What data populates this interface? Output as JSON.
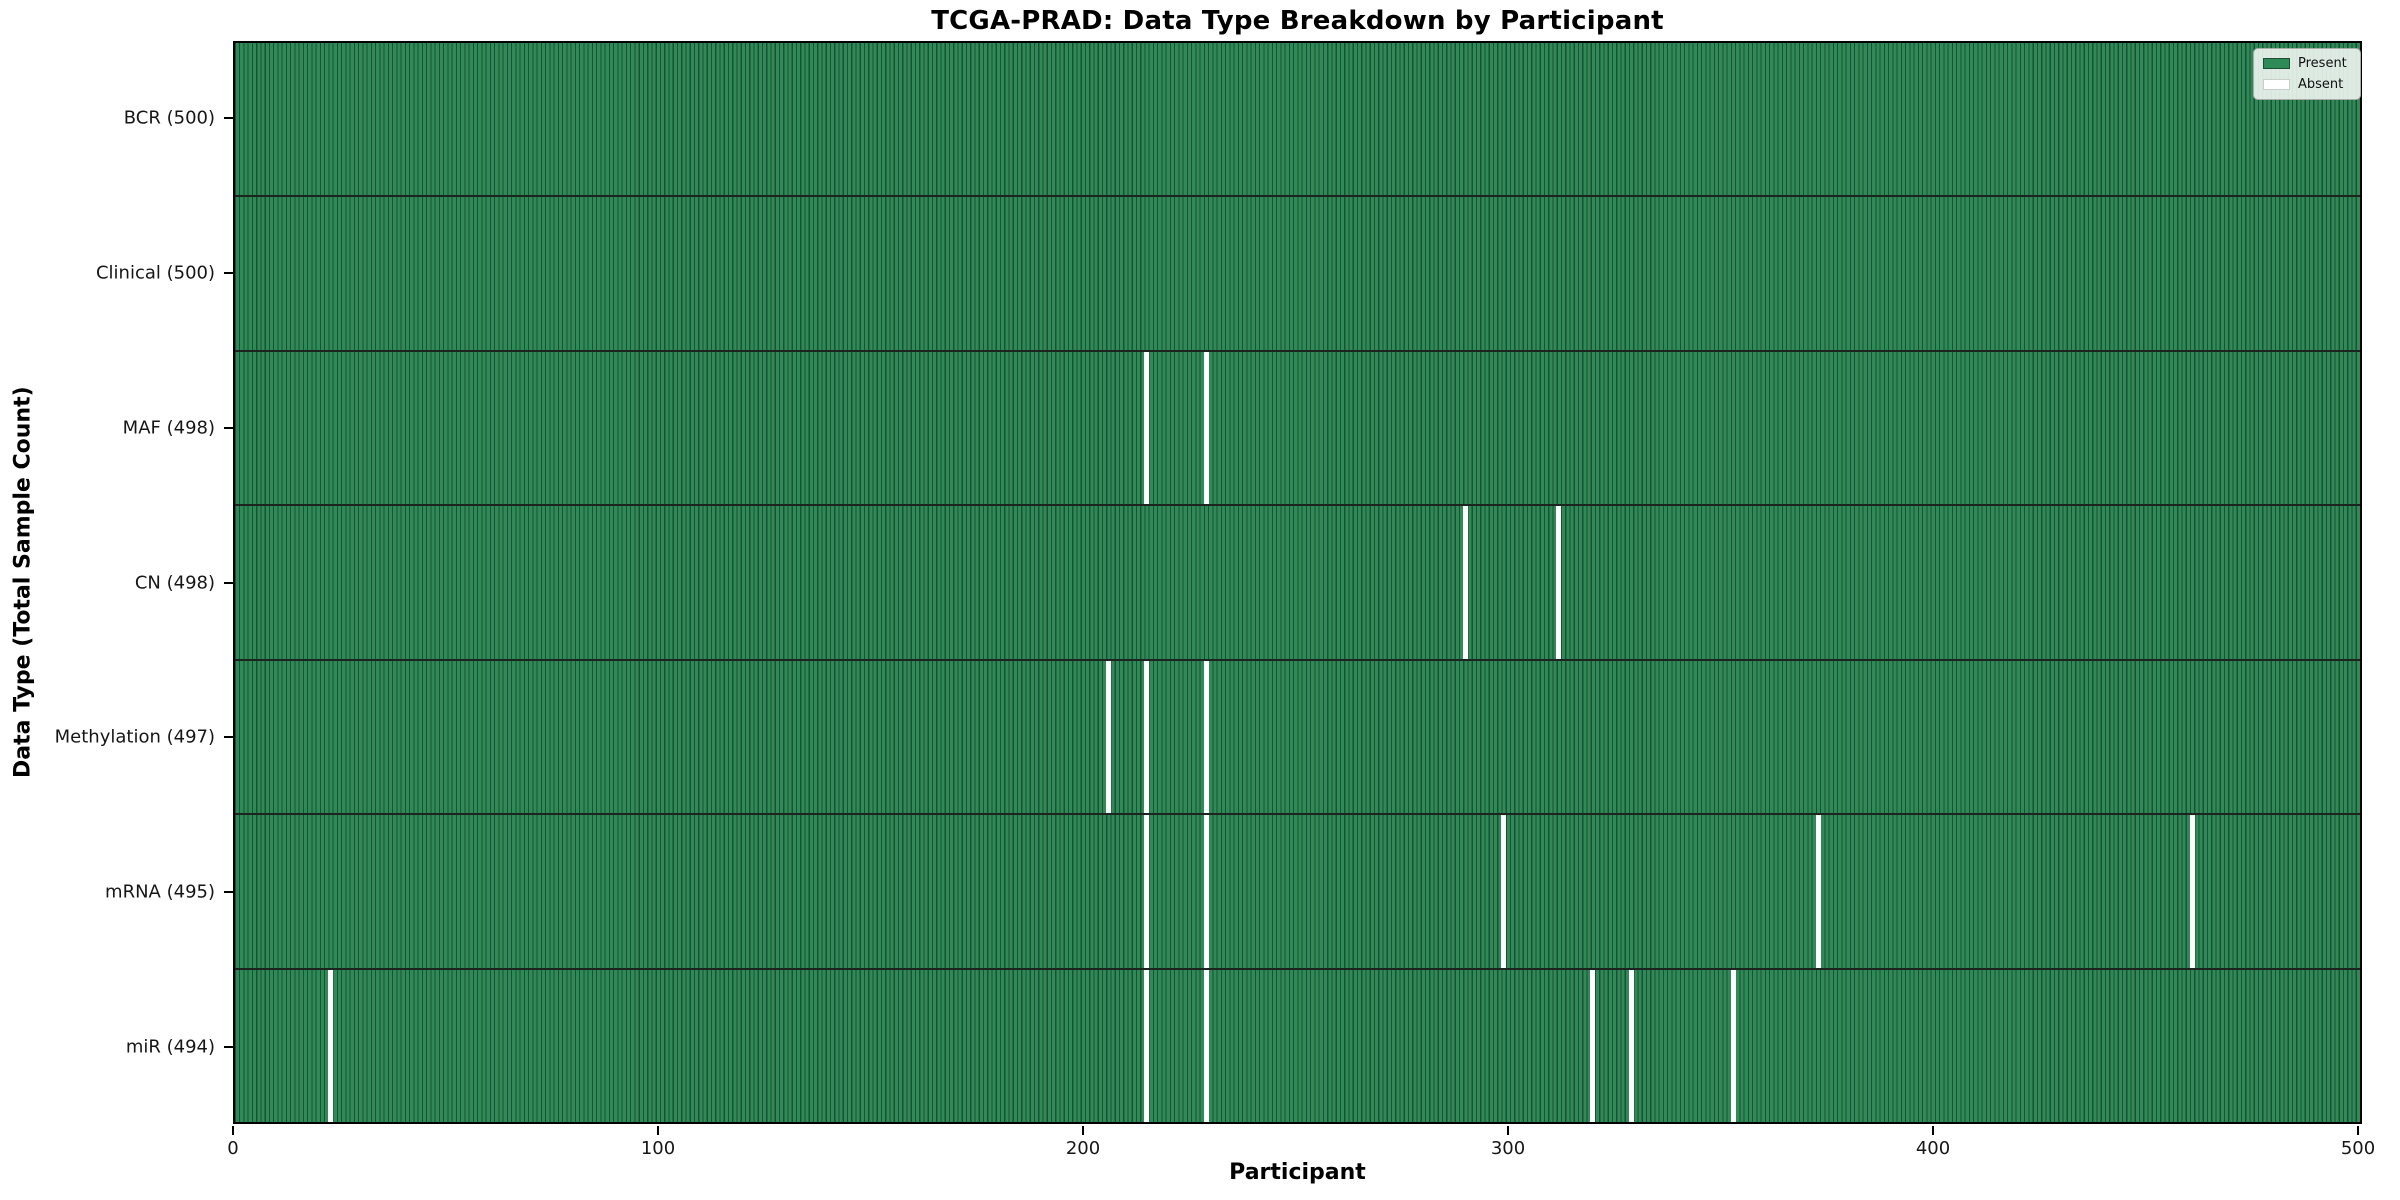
{
  "chart_data": {
    "type": "heatmap",
    "title": "TCGA-PRAD: Data Type Breakdown by Participant",
    "xlabel": "Participant",
    "ylabel": "Data Type (Total Sample Count)",
    "x_range": [
      0,
      500
    ],
    "x_ticks": [
      0,
      100,
      200,
      300,
      400,
      500
    ],
    "n_participants": 500,
    "grid": false,
    "legend_position": "upper right",
    "rows": [
      {
        "data_type": "BCR",
        "label": "BCR (500)",
        "total": 500,
        "absent_participants": []
      },
      {
        "data_type": "Clinical",
        "label": "Clinical (500)",
        "total": 500,
        "absent_participants": []
      },
      {
        "data_type": "MAF",
        "label": "MAF (498)",
        "total": 498,
        "absent_participants": [
          214,
          228
        ]
      },
      {
        "data_type": "CN",
        "label": "CN (498)",
        "total": 498,
        "absent_participants": [
          289,
          311
        ]
      },
      {
        "data_type": "Methylation",
        "label": "Methylation (497)",
        "total": 497,
        "absent_participants": [
          205,
          214,
          228
        ]
      },
      {
        "data_type": "mRNA",
        "label": "mRNA (495)",
        "total": 495,
        "absent_participants": [
          214,
          228,
          298,
          372,
          460
        ]
      },
      {
        "data_type": "miR",
        "label": "miR (494)",
        "total": 494,
        "absent_participants": [
          22,
          214,
          228,
          319,
          328,
          352
        ]
      }
    ],
    "legend": {
      "entries": [
        {
          "label": "Present",
          "color": "#2e8b57"
        },
        {
          "label": "Absent",
          "color": "#ffffff"
        }
      ]
    },
    "colors": {
      "present": "#2e8b57",
      "absent": "#ffffff",
      "cell_edge": "#1d4f35",
      "row_separator": "#1b241f",
      "spine": "#000000"
    }
  }
}
